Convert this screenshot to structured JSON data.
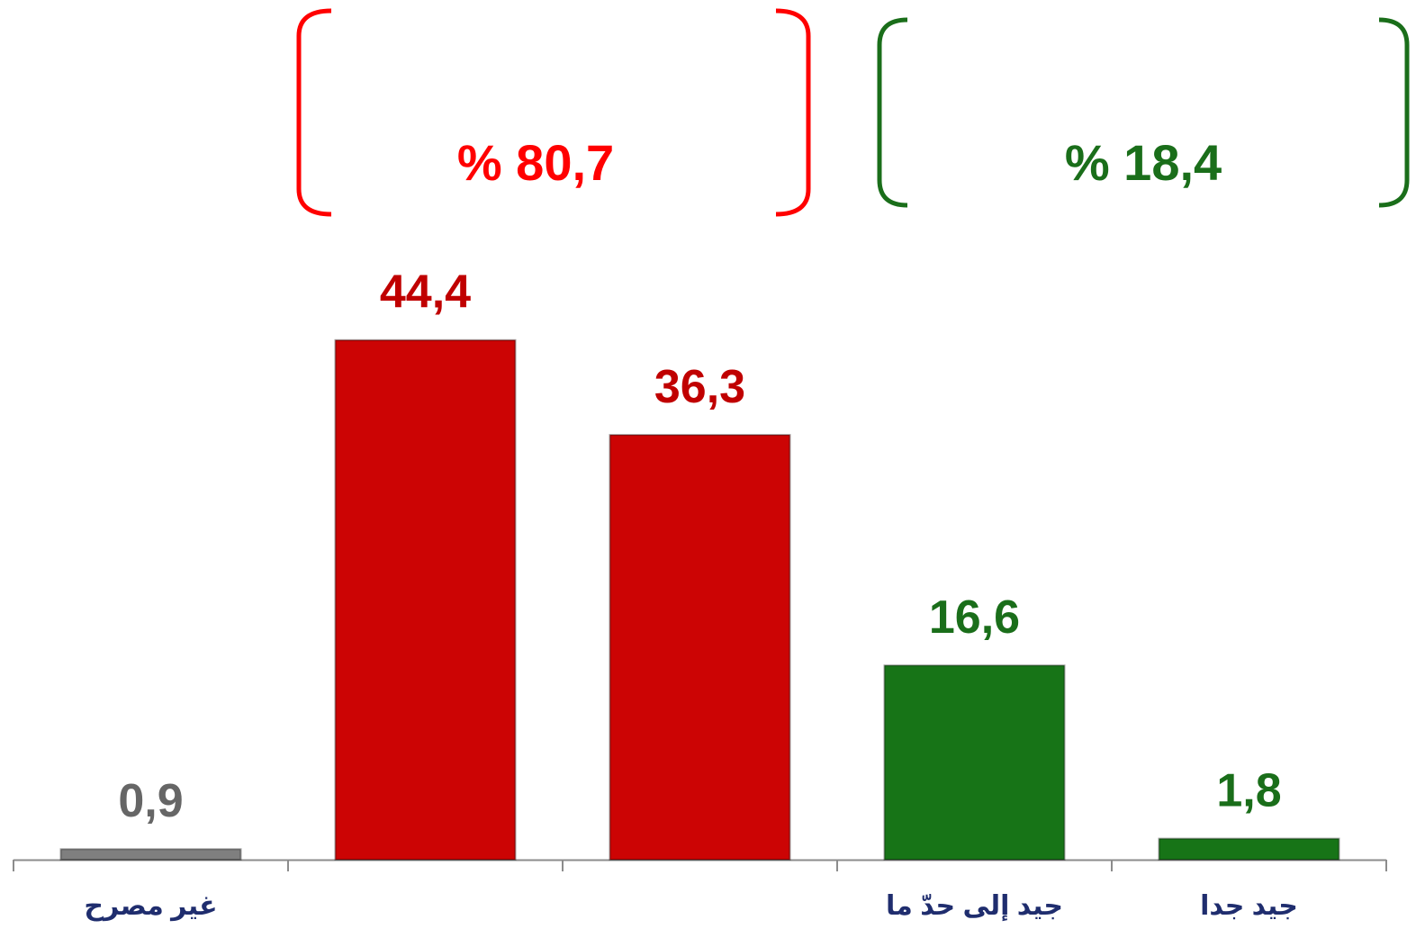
{
  "chart_data": {
    "type": "bar",
    "categories": [
      "غير مصرح",
      null,
      null,
      "جيد إلى حدّ ما",
      "جيد جدا"
    ],
    "values": [
      0.9,
      44.4,
      36.3,
      16.6,
      1.8
    ],
    "value_labels": [
      "0,9",
      "44,4",
      "36,3",
      "16,6",
      "1,8"
    ],
    "colors": [
      "#7f7f7f",
      "#cc0404",
      "#cc0404",
      "#177417",
      "#177417"
    ],
    "label_colors": [
      "#666666",
      "#c00000",
      "#c00000",
      "#1a6e1a",
      "#1a6e1a"
    ],
    "ylim": [
      0,
      50
    ],
    "annotations": [
      {
        "text": "% 80,7",
        "color": "#ff0000"
      },
      {
        "text": "% 18,4",
        "color": "#1a6e1a"
      }
    ]
  }
}
